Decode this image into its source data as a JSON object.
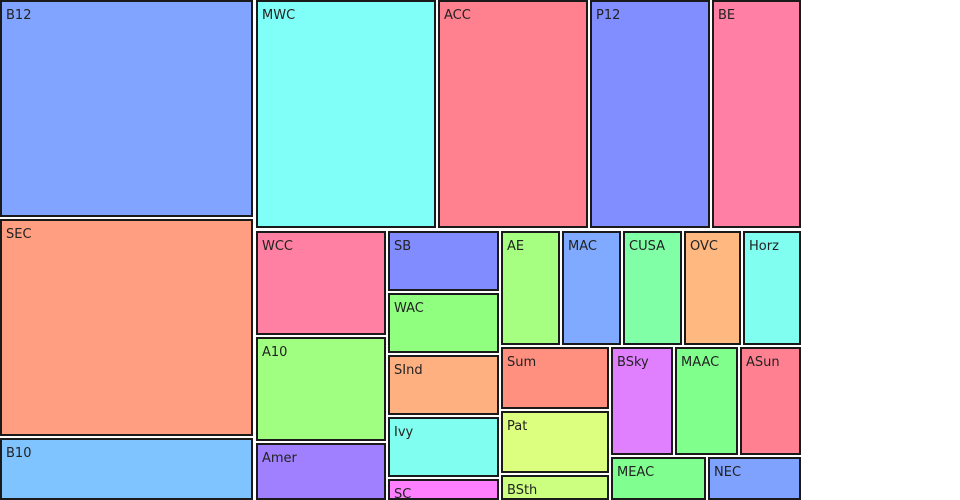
{
  "chart_data": {
    "type": "treemap",
    "tiles": [
      {
        "label": "B12",
        "color": "#80a4ff"
      },
      {
        "label": "SEC",
        "color": "#ff9e80"
      },
      {
        "label": "B10",
        "color": "#80c4ff"
      },
      {
        "label": "MWC",
        "color": "#80fff8"
      },
      {
        "label": "ACC",
        "color": "#ff808e"
      },
      {
        "label": "P12",
        "color": "#808eff"
      },
      {
        "label": "BE",
        "color": "#ff80a4"
      },
      {
        "label": "WCC",
        "color": "#ff80a2"
      },
      {
        "label": "A10",
        "color": "#a0ff80"
      },
      {
        "label": "Amer",
        "color": "#a080ff"
      },
      {
        "label": "SB",
        "color": "#808cff"
      },
      {
        "label": "WAC",
        "color": "#90ff80"
      },
      {
        "label": "SInd",
        "color": "#ffb080"
      },
      {
        "label": "Ivy",
        "color": "#80fff0"
      },
      {
        "label": "SC",
        "color": "#ff80ff"
      },
      {
        "label": "AE",
        "color": "#a6ff80"
      },
      {
        "label": "MAC",
        "color": "#80aaff"
      },
      {
        "label": "CUSA",
        "color": "#80ffa6"
      },
      {
        "label": "OVC",
        "color": "#ffb880"
      },
      {
        "label": "Horz",
        "color": "#80fff0"
      },
      {
        "label": "Sum",
        "color": "#ff9080"
      },
      {
        "label": "Pat",
        "color": "#dcff80"
      },
      {
        "label": "BSth",
        "color": "#ccff80"
      },
      {
        "label": "BSky",
        "color": "#e080ff"
      },
      {
        "label": "MAAC",
        "color": "#80ff8c"
      },
      {
        "label": "ASun",
        "color": "#ff8090"
      },
      {
        "label": "MEAC",
        "color": "#80ff90"
      },
      {
        "label": "NEC",
        "color": "#80a2ff"
      }
    ]
  }
}
